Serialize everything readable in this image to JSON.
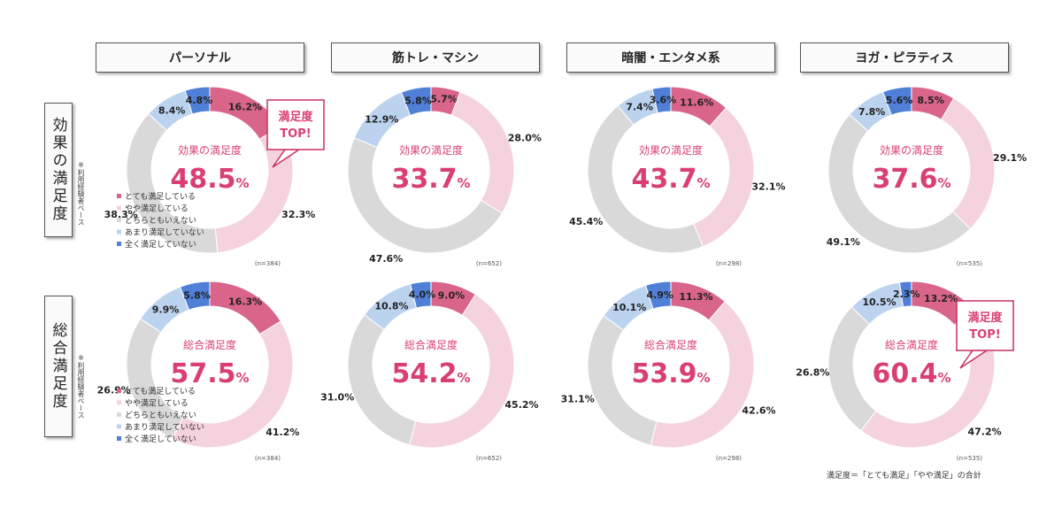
{
  "column_headers": [
    "パーソナル",
    "筋トレ・マシン",
    "暗闇・エンタメ系",
    "ヨガ・ピラティス"
  ],
  "row_headers": [
    "効果の満足度",
    "総合満足度"
  ],
  "base_note": "※利用経験者ベース",
  "legend_labels": [
    "とても満足している",
    "やや満足している",
    "どちらともいえない",
    "あまり満足していない",
    "全く満足していない"
  ],
  "colors": {
    "very_satisfied": "#d9658a",
    "somewhat_satisfied": "#f5d3de",
    "neutral": "#d9d9d9",
    "somewhat_dissatisfied": "#bcd3ef",
    "not_satisfied": "#4f7fd6",
    "accent": "#d93f73",
    "callout_border": "#c8325f"
  },
  "callout_text": [
    "満足度",
    "TOP!"
  ],
  "footnote": "満足度＝「とても満足」「やや満足」の合計",
  "chart_data": [
    {
      "type": "pie",
      "row": "効果の満足度",
      "column": "パーソナル",
      "center_label": "効果の満足度",
      "center_value": "48.5",
      "unit": "%",
      "n": "(n=384)",
      "categories": [
        "とても満足している",
        "やや満足している",
        "どちらともいえない",
        "あまり満足していない",
        "全く満足していない"
      ],
      "values": [
        16.2,
        32.3,
        38.3,
        8.4,
        4.8
      ],
      "labels": [
        "16.2%",
        "32.3%",
        "38.3%",
        "8.4%",
        "4.8%"
      ],
      "legend": true,
      "callout": true
    },
    {
      "type": "pie",
      "row": "効果の満足度",
      "column": "筋トレ・マシン",
      "center_label": "効果の満足度",
      "center_value": "33.7",
      "unit": "%",
      "n": "(n=652)",
      "categories": [
        "とても満足している",
        "やや満足している",
        "どちらともいえない",
        "あまり満足していない",
        "全く満足していない"
      ],
      "values": [
        5.7,
        28.0,
        47.6,
        12.9,
        5.8
      ],
      "labels": [
        "5.7%",
        "28.0%",
        "47.6%",
        "12.9%",
        "5.8%"
      ],
      "legend": false,
      "callout": false
    },
    {
      "type": "pie",
      "row": "効果の満足度",
      "column": "暗闇・エンタメ系",
      "center_label": "効果の満足度",
      "center_value": "43.7",
      "unit": "%",
      "n": "(n=298)",
      "categories": [
        "とても満足している",
        "やや満足している",
        "どちらともいえない",
        "あまり満足していない",
        "全く満足していない"
      ],
      "values": [
        11.6,
        32.1,
        45.4,
        7.4,
        3.6
      ],
      "labels": [
        "11.6%",
        "32.1%",
        "45.4%",
        "7.4%",
        "3.6%"
      ],
      "legend": false,
      "callout": false
    },
    {
      "type": "pie",
      "row": "効果の満足度",
      "column": "ヨガ・ピラティス",
      "center_label": "効果の満足度",
      "center_value": "37.6",
      "unit": "%",
      "n": "(n=535)",
      "categories": [
        "とても満足している",
        "やや満足している",
        "どちらともいえない",
        "あまり満足していない",
        "全く満足していない"
      ],
      "values": [
        8.5,
        29.1,
        49.1,
        7.8,
        5.6
      ],
      "labels": [
        "8.5%",
        "29.1%",
        "49.1%",
        "7.8%",
        "5.6%"
      ],
      "legend": false,
      "callout": false
    },
    {
      "type": "pie",
      "row": "総合満足度",
      "column": "パーソナル",
      "center_label": "総合満足度",
      "center_value": "57.5",
      "unit": "%",
      "n": "(n=384)",
      "categories": [
        "とても満足している",
        "やや満足している",
        "どちらともいえない",
        "あまり満足していない",
        "全く満足していない"
      ],
      "values": [
        16.3,
        41.2,
        26.9,
        9.9,
        5.8
      ],
      "labels": [
        "16.3%",
        "41.2%",
        "26.9%",
        "9.9%",
        "5.8%"
      ],
      "legend": true,
      "callout": false
    },
    {
      "type": "pie",
      "row": "総合満足度",
      "column": "筋トレ・マシン",
      "center_label": "総合満足度",
      "center_value": "54.2",
      "unit": "%",
      "n": "(n=652)",
      "categories": [
        "とても満足している",
        "やや満足している",
        "どちらともいえない",
        "あまり満足していない",
        "全く満足していない"
      ],
      "values": [
        9.0,
        45.2,
        31.0,
        10.8,
        4.0
      ],
      "labels": [
        "9.0%",
        "45.2%",
        "31.0%",
        "10.8%",
        "4.0%"
      ],
      "legend": false,
      "callout": false
    },
    {
      "type": "pie",
      "row": "総合満足度",
      "column": "暗闇・エンタメ系",
      "center_label": "総合満足度",
      "center_value": "53.9",
      "unit": "%",
      "n": "(n=298)",
      "categories": [
        "とても満足している",
        "やや満足している",
        "どちらともいえない",
        "あまり満足していない",
        "全く満足していない"
      ],
      "values": [
        11.3,
        42.6,
        31.1,
        10.1,
        4.9
      ],
      "labels": [
        "11.3%",
        "42.6%",
        "31.1%",
        "10.1%",
        "4.9%"
      ],
      "legend": false,
      "callout": false
    },
    {
      "type": "pie",
      "row": "総合満足度",
      "column": "ヨガ・ピラティス",
      "center_label": "総合満足度",
      "center_value": "60.4",
      "unit": "%",
      "n": "(n=535)",
      "categories": [
        "とても満足している",
        "やや満足している",
        "どちらともいえない",
        "あまり満足していない",
        "全く満足していない"
      ],
      "values": [
        13.2,
        47.2,
        26.8,
        10.5,
        2.3
      ],
      "labels": [
        "13.2%",
        "47.2%",
        "26.8%",
        "10.5%",
        "2.3%"
      ],
      "legend": false,
      "callout": true
    }
  ]
}
